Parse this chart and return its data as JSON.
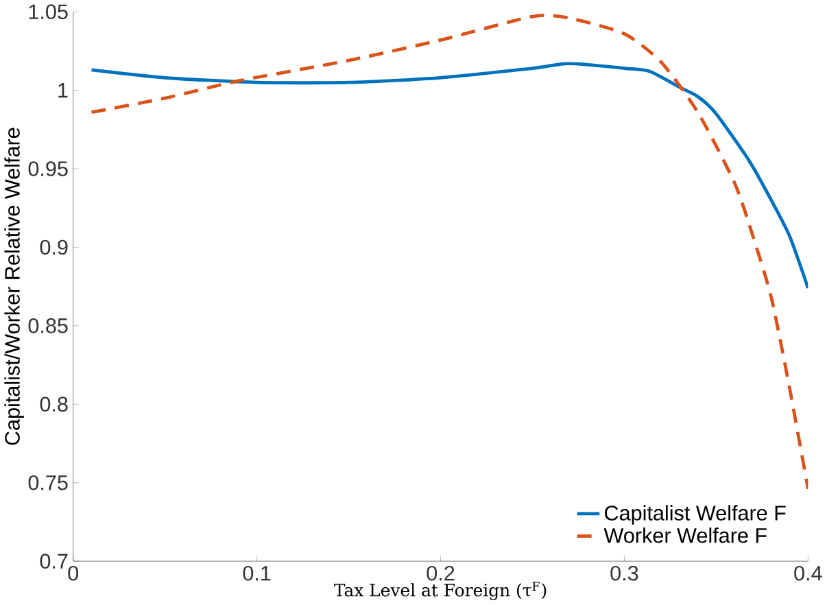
{
  "chart_data": {
    "type": "line",
    "xlabel": "Tax Level at Foreign (τ$^{F}$)",
    "ylabel": "Capitalist/Worker Relative Welfare",
    "xlim": [
      0,
      0.4
    ],
    "ylim": [
      0.7,
      1.05
    ],
    "xticks": [
      0,
      0.1,
      0.2,
      0.3,
      0.4
    ],
    "yticks": [
      0.7,
      0.75,
      0.8,
      0.85,
      0.9,
      0.95,
      1,
      1.05
    ],
    "legend": "bottom right",
    "grid": false,
    "series": [
      {
        "name": "Capitalist Welfare F",
        "color": "#0072bd",
        "line_style": "solid",
        "x": [
          0.01,
          0.05,
          0.1,
          0.15,
          0.2,
          0.25,
          0.27,
          0.3,
          0.314,
          0.33,
          0.34,
          0.35,
          0.368,
          0.38,
          0.39,
          0.4
        ],
        "values": [
          1.013,
          1.008,
          1.005,
          1.005,
          1.008,
          1.014,
          1.017,
          1.014,
          1.012,
          1.002,
          0.996,
          0.985,
          0.955,
          0.93,
          0.907,
          0.874
        ]
      },
      {
        "name": "Worker Welfare F",
        "color": "#d95319",
        "line_style": "dashed",
        "x": [
          0.01,
          0.05,
          0.09,
          0.15,
          0.2,
          0.25,
          0.27,
          0.3,
          0.32,
          0.34,
          0.36,
          0.37,
          0.38,
          0.39,
          0.4
        ],
        "values": [
          0.986,
          0.995,
          1.006,
          1.019,
          1.032,
          1.047,
          1.046,
          1.036,
          1.018,
          0.986,
          0.941,
          0.907,
          0.868,
          0.81,
          0.746
        ]
      }
    ]
  }
}
